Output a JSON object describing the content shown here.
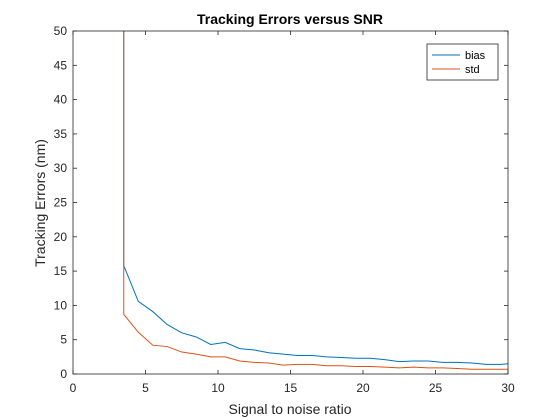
{
  "chart_data": {
    "type": "line",
    "title": "Tracking Errors versus SNR",
    "xlabel": "Signal to noise ratio",
    "ylabel": "Tracking Errors (nm)",
    "xlim": [
      0,
      30
    ],
    "ylim": [
      0,
      50
    ],
    "xticks": [
      "0",
      "5",
      "10",
      "15",
      "20",
      "25",
      "30"
    ],
    "yticks": [
      "0",
      "5",
      "10",
      "15",
      "20",
      "25",
      "30",
      "35",
      "40",
      "45",
      "50"
    ],
    "grid": false,
    "legend_position": "top-right",
    "series": [
      {
        "name": "bias",
        "color": "#0072BD",
        "x": [
          3.5,
          3.5,
          4.5,
          5.5,
          6.5,
          7.5,
          8.5,
          9.5,
          10.5,
          11.5,
          12.5,
          13.5,
          14.5,
          15.5,
          16.5,
          17.5,
          18.5,
          19.5,
          20.5,
          21.5,
          22.5,
          23.5,
          24.5,
          25.5,
          26.5,
          27.5,
          28.5,
          29.5,
          30
        ],
        "y": [
          50,
          15.8,
          10.6,
          9.1,
          7.2,
          6.0,
          5.4,
          4.3,
          4.6,
          3.7,
          3.5,
          3.1,
          2.9,
          2.7,
          2.7,
          2.5,
          2.4,
          2.3,
          2.3,
          2.1,
          1.8,
          1.9,
          1.9,
          1.7,
          1.7,
          1.6,
          1.4,
          1.4,
          1.5
        ]
      },
      {
        "name": "std",
        "color": "#D95319",
        "x": [
          3.5,
          3.5,
          4.5,
          5.5,
          6.5,
          7.5,
          8.5,
          9.5,
          10.5,
          11.5,
          12.5,
          13.5,
          14.5,
          15.5,
          16.5,
          17.5,
          18.5,
          19.5,
          20.5,
          21.5,
          22.5,
          23.5,
          24.5,
          25.5,
          26.5,
          27.5,
          28.5,
          29.5,
          30
        ],
        "y": [
          50,
          8.7,
          6.1,
          4.2,
          4.0,
          3.2,
          2.9,
          2.5,
          2.5,
          1.9,
          1.7,
          1.6,
          1.3,
          1.4,
          1.4,
          1.2,
          1.2,
          1.1,
          1.1,
          1.0,
          0.9,
          1.0,
          0.9,
          0.9,
          0.8,
          0.7,
          0.7,
          0.7,
          0.7
        ]
      }
    ]
  }
}
